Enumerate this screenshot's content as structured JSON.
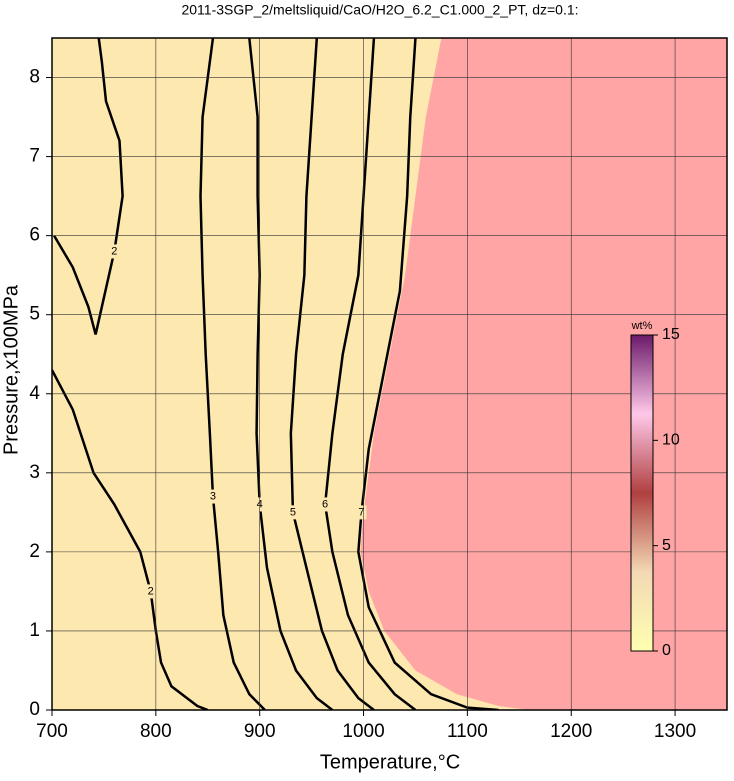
{
  "chart_data": {
    "type": "contour",
    "title": "2011-3SGP_2/meltsliquid/CaO/H2O_6.2_C1.000_2_PT, dz=0.1:",
    "x_label": "Temperature,°C",
    "y_label": "Pressure,x100MPa",
    "xlim": [
      700,
      1350
    ],
    "ylim": [
      0,
      8.5
    ],
    "xticks": [
      700,
      800,
      900,
      1000,
      1100,
      1200,
      1300
    ],
    "yticks": [
      0,
      1,
      2,
      3,
      4,
      5,
      6,
      7,
      8
    ],
    "grid": true,
    "background_color": "#fde8b0",
    "saturated_color": "#ffa5a5",
    "saturated_boundary": {
      "x": [
        1075,
        1060,
        1050,
        1040,
        1025,
        1010,
        1000,
        997,
        1005,
        1020,
        1050,
        1090,
        1130,
        1160
      ],
      "y": [
        8.5,
        7.5,
        6.5,
        5.5,
        4.5,
        3.5,
        2.5,
        2.0,
        1.5,
        1.0,
        0.5,
        0.2,
        0.05,
        0
      ]
    },
    "series": [
      {
        "name": "2",
        "color": "#000000",
        "x": [
          700,
          720,
          740,
          760,
          785,
          795,
          800,
          805,
          815,
          840,
          850
        ],
        "y": [
          4.3,
          3.8,
          3.0,
          2.6,
          2.0,
          1.5,
          1.0,
          0.6,
          0.3,
          0.05,
          0
        ]
      },
      {
        "name": "2",
        "color": "#000000",
        "x": [
          702,
          720,
          735,
          742,
          748,
          760,
          768,
          765,
          752,
          748,
          745
        ],
        "y": [
          6.0,
          5.6,
          5.1,
          4.75,
          5.1,
          5.8,
          6.5,
          7.2,
          7.7,
          8.2,
          8.5
        ]
      },
      {
        "name": "3",
        "color": "#000000",
        "x": [
          855,
          845,
          843,
          845,
          848,
          852,
          855,
          860,
          865,
          875,
          890,
          905
        ],
        "y": [
          8.5,
          7.5,
          6.5,
          5.5,
          4.5,
          3.5,
          2.7,
          2.0,
          1.2,
          0.6,
          0.2,
          0
        ]
      },
      {
        "name": "4",
        "color": "#000000",
        "x": [
          890,
          898,
          898,
          900,
          898,
          897,
          900,
          907,
          920,
          935,
          955,
          970
        ],
        "y": [
          8.5,
          7.5,
          6.5,
          5.5,
          4.5,
          3.5,
          2.6,
          1.8,
          1.0,
          0.5,
          0.15,
          0
        ]
      },
      {
        "name": "5",
        "color": "#000000",
        "x": [
          955,
          950,
          945,
          943,
          935,
          930,
          932,
          945,
          960,
          975,
          995,
          1010
        ],
        "y": [
          8.5,
          7.5,
          6.5,
          5.5,
          4.5,
          3.5,
          2.5,
          1.8,
          1.0,
          0.5,
          0.15,
          0
        ]
      },
      {
        "name": "6",
        "color": "#000000",
        "x": [
          1010,
          1005,
          1000,
          995,
          980,
          970,
          963,
          970,
          985,
          1005,
          1030,
          1050
        ],
        "y": [
          8.5,
          7.5,
          6.5,
          5.5,
          4.5,
          3.5,
          2.6,
          2.0,
          1.2,
          0.6,
          0.2,
          0
        ]
      },
      {
        "name": "7",
        "color": "#000000",
        "x": [
          1050,
          1045,
          1042,
          1035,
          1020,
          1005,
          998,
          995,
          1005,
          1030,
          1065,
          1100,
          1130
        ],
        "y": [
          8.5,
          7.5,
          6.5,
          5.3,
          4.3,
          3.3,
          2.5,
          2.0,
          1.3,
          0.6,
          0.2,
          0.03,
          0
        ]
      }
    ],
    "colorbar": {
      "title": "wt%",
      "lim": [
        0,
        15
      ],
      "ticks": [
        0,
        5,
        10,
        15
      ],
      "colors": [
        "#ffffb0",
        "#f3d8b4",
        "#b04040",
        "#ffc8e8",
        "#6a1a6a"
      ]
    }
  }
}
